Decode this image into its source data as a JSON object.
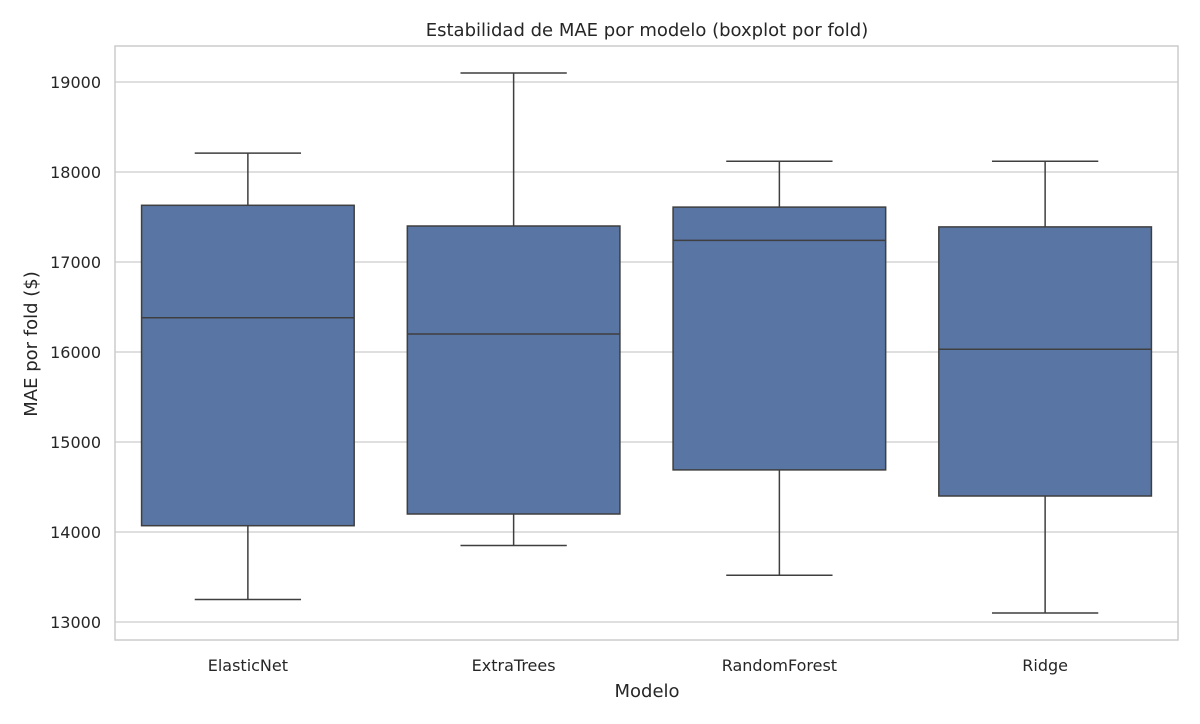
{
  "chart_data": {
    "type": "boxplot",
    "title": "Estabilidad de MAE por modelo (boxplot por fold)",
    "xlabel": "Modelo",
    "ylabel": "MAE por fold ($)",
    "ylim": [
      12800,
      19400
    ],
    "yticks": [
      13000,
      14000,
      15000,
      16000,
      17000,
      18000,
      19000
    ],
    "grid": true,
    "colors": {
      "box_fill": "#5975a4",
      "box_edge": "#3f3f3f",
      "grid": "#cccccc",
      "frame": "#cccccc"
    },
    "categories": [
      "ElasticNet",
      "ExtraTrees",
      "RandomForest",
      "Ridge"
    ],
    "boxes": [
      {
        "category": "ElasticNet",
        "whisker_low": 13250,
        "q1": 14070,
        "median": 16380,
        "q3": 17630,
        "whisker_high": 18210
      },
      {
        "category": "ExtraTrees",
        "whisker_low": 13850,
        "q1": 14200,
        "median": 16200,
        "q3": 17400,
        "whisker_high": 19100
      },
      {
        "category": "RandomForest",
        "whisker_low": 13520,
        "q1": 14690,
        "median": 17240,
        "q3": 17610,
        "whisker_high": 18120
      },
      {
        "category": "Ridge",
        "whisker_low": 13100,
        "q1": 14400,
        "median": 16030,
        "q3": 17390,
        "whisker_high": 18120
      }
    ]
  }
}
